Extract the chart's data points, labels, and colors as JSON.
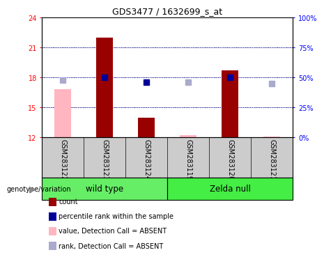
{
  "title": "GDS3477 / 1632699_s_at",
  "samples": [
    "GSM283122",
    "GSM283123",
    "GSM283124",
    "GSM283119",
    "GSM283120",
    "GSM283121"
  ],
  "ylim_left": [
    12,
    24
  ],
  "ylim_right": [
    0,
    100
  ],
  "yticks_left": [
    12,
    15,
    18,
    21,
    24
  ],
  "yticks_right": [
    0,
    25,
    50,
    75,
    100
  ],
  "yticklabels_right": [
    "0%",
    "25%",
    "50%",
    "75%",
    "100%"
  ],
  "count_values": [
    null,
    22.0,
    14.0,
    null,
    18.7,
    null
  ],
  "percentile_values": [
    null,
    18.0,
    17.5,
    null,
    18.0,
    null
  ],
  "absent_value_values": [
    16.8,
    null,
    null,
    12.2,
    null,
    12.1
  ],
  "absent_rank_values": [
    17.7,
    null,
    null,
    17.5,
    null,
    17.4
  ],
  "color_count": "#990000",
  "color_percentile": "#000099",
  "color_absent_value": "#FFB6C1",
  "color_absent_rank": "#AAAACC",
  "bar_width": 0.4,
  "marker_size": 6,
  "groups": [
    {
      "name": "wild type",
      "indices": [
        0,
        1,
        2
      ],
      "color": "#66ee66"
    },
    {
      "name": "Zelda null",
      "indices": [
        3,
        4,
        5
      ],
      "color": "#44ee44"
    }
  ],
  "legend_labels": [
    "count",
    "percentile rank within the sample",
    "value, Detection Call = ABSENT",
    "rank, Detection Call = ABSENT"
  ],
  "legend_colors": [
    "#990000",
    "#000099",
    "#FFB6C1",
    "#AAAACC"
  ],
  "label_area_facecolor": "#cccccc",
  "plot_facecolor": "#ffffff"
}
